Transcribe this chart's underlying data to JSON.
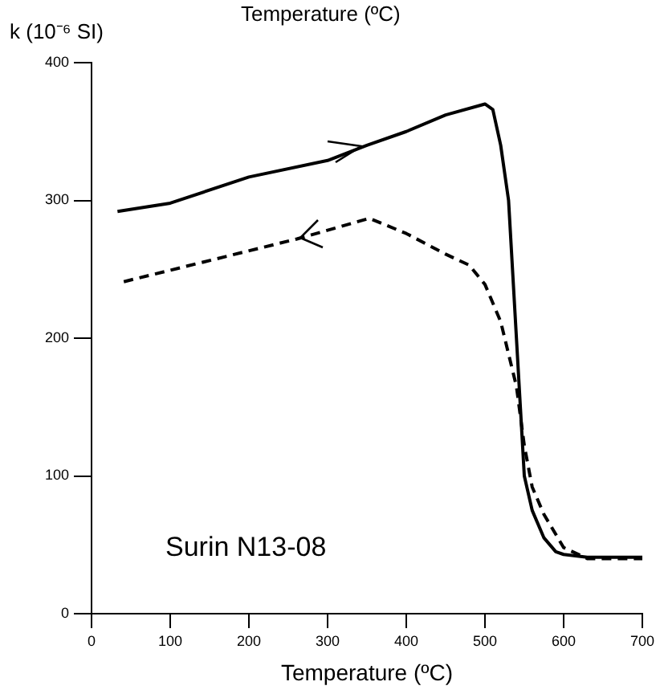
{
  "chart_data": {
    "type": "line",
    "xlabel": "Temperature (ºC)",
    "ylabel": "k (10⁻⁶ SI)",
    "annotations": [
      "Temperature (ºC)",
      "Surin N13-08"
    ],
    "xlim": [
      0,
      700
    ],
    "xticks": [
      0,
      100,
      200,
      300,
      400,
      500,
      600,
      700
    ],
    "ylim": [
      0,
      400
    ],
    "yticks": [
      0,
      100,
      200,
      300,
      400
    ],
    "grid": false,
    "legend": false,
    "marker": "none",
    "series": [
      {
        "color": "#000000",
        "line_style": "solid",
        "x": [
          33,
          100,
          200,
          300,
          350,
          400,
          450,
          500,
          510,
          520,
          530,
          540,
          550,
          560,
          575,
          590,
          600,
          630,
          700
        ],
        "values": [
          292,
          298,
          317,
          329,
          340,
          350,
          362,
          370,
          366,
          340,
          300,
          200,
          100,
          75,
          55,
          45,
          43,
          41,
          41
        ]
      },
      {
        "color": "#000000",
        "line_style": "dashed",
        "x": [
          41,
          261,
          353,
          400,
          450,
          480,
          500,
          520,
          540,
          550,
          560,
          575,
          600,
          630,
          700
        ],
        "values": [
          241,
          272,
          287,
          276,
          261,
          253,
          239,
          212,
          165,
          122,
          92,
          72,
          48,
          40,
          40
        ]
      }
    ]
  }
}
